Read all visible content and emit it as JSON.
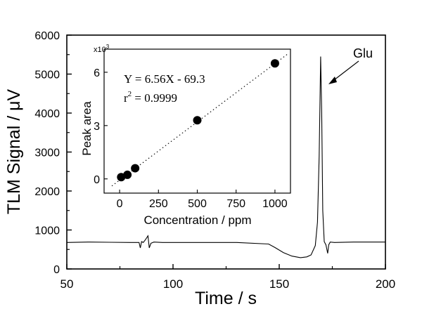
{
  "main_chart": {
    "type": "line",
    "xlabel": "Time / s",
    "ylabel": "TLM Signal / μV",
    "xlim": [
      50,
      200
    ],
    "ylim": [
      0,
      6000
    ],
    "xticks": [
      50,
      100,
      150,
      200
    ],
    "yticks": [
      0,
      1000,
      2000,
      3000,
      4000,
      5000,
      6000
    ],
    "annotation": "Glu"
  },
  "inset_chart": {
    "type": "scatter",
    "xlabel": "Concentration / ppm",
    "ylabel": "Peak area",
    "y_multiplier": "x10",
    "y_multiplier_exp": "3",
    "xlim": [
      -100,
      1100
    ],
    "ylim": [
      -0.8,
      7.3
    ],
    "xticks": [
      0,
      250,
      500,
      750,
      1000
    ],
    "yticks": [
      0,
      3,
      6
    ],
    "equation": "Y = 6.56X - 69.3",
    "r_label": "r",
    "r_exp": "2",
    "r_value": " = 0.9999"
  },
  "chart_data": [
    {
      "type": "line",
      "xlabel": "Time / s",
      "ylabel": "TLM Signal / μV",
      "xlim": [
        50,
        200
      ],
      "ylim": [
        0,
        6000
      ],
      "x": [
        50,
        60,
        70,
        80,
        84,
        84.6,
        85.2,
        86,
        87,
        88.2,
        88.8,
        89.6,
        91,
        95,
        110,
        130,
        145,
        148,
        152,
        156,
        160,
        163,
        165,
        167,
        168,
        168.8,
        169.5,
        170,
        170.5,
        171.2,
        172,
        172.8,
        173.3,
        174,
        176,
        185,
        200
      ],
      "y": [
        680,
        690,
        685,
        680,
        680,
        540,
        700,
        680,
        750,
        850,
        540,
        660,
        690,
        680,
        680,
        680,
        640,
        550,
        420,
        330,
        290,
        310,
        360,
        600,
        1200,
        2900,
        5450,
        4000,
        1500,
        700,
        620,
        400,
        620,
        690,
        680,
        690,
        690
      ],
      "annotations": [
        "Glu"
      ]
    },
    {
      "type": "scatter",
      "title": "",
      "xlabel": "Concentration / ppm",
      "ylabel": "Peak area (x10^3)",
      "xlim": [
        -100,
        1100
      ],
      "ylim": [
        -0.8,
        7.3
      ],
      "x": [
        10,
        50,
        100,
        500,
        1000
      ],
      "y": [
        0.1,
        0.23,
        0.6,
        3.3,
        6.5
      ],
      "fit": {
        "slope": 6.56,
        "intercept": -69.3,
        "r2": 0.9999,
        "style": "dotted"
      }
    }
  ]
}
